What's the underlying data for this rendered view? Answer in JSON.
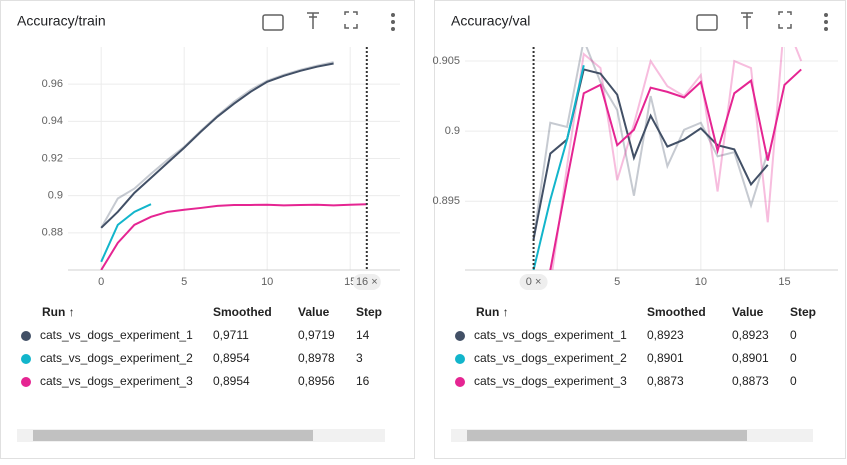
{
  "chart_data": [
    {
      "type": "line",
      "title": "Accuracy/train",
      "x": [
        0,
        1,
        2,
        3,
        4,
        5,
        6,
        7,
        8,
        9,
        10,
        11,
        12,
        13,
        14,
        15,
        16
      ],
      "xlim": [
        -2,
        18
      ],
      "xticks": [
        0,
        5,
        10,
        15
      ],
      "ylim": [
        0.86,
        0.98
      ],
      "yticks": [
        0.88,
        0.9,
        0.92,
        0.94,
        0.96
      ],
      "grid": true,
      "step_marker": {
        "value": 16,
        "label": "16 ×"
      },
      "series": [
        {
          "name": "cats_vs_dogs_experiment_1",
          "color": "#425066",
          "values": [
            0.8827,
            0.8913,
            0.9015,
            0.9096,
            0.9177,
            0.9258,
            0.9344,
            0.9425,
            0.9495,
            0.9559,
            0.9613,
            0.9645,
            0.9672,
            0.9694,
            0.9711,
            null,
            null
          ],
          "raw_values": [
            0.8827,
            0.8985,
            0.9038,
            0.9118,
            0.9193,
            0.9263,
            0.9349,
            0.943,
            0.9505,
            0.9569,
            0.9618,
            0.965,
            0.9677,
            0.9699,
            0.9719,
            null,
            null
          ]
        },
        {
          "name": "cats_vs_dogs_experiment_2",
          "color": "#12b5cb",
          "values": [
            0.8644,
            0.8843,
            0.8913,
            0.8954,
            null,
            null,
            null,
            null,
            null,
            null,
            null,
            null,
            null,
            null,
            null,
            null,
            null
          ]
        },
        {
          "name": "cats_vs_dogs_experiment_3",
          "color": "#e52592",
          "values": [
            0.86,
            0.8746,
            0.8843,
            0.8886,
            0.8913,
            0.8924,
            0.8934,
            0.8945,
            0.895,
            0.895,
            0.8951,
            0.8948,
            0.895,
            0.8951,
            0.8948,
            0.8951,
            0.8954
          ]
        }
      ]
    },
    {
      "type": "line",
      "title": "Accuracy/val",
      "x": [
        0,
        1,
        2,
        3,
        4,
        5,
        6,
        7,
        8,
        9,
        10,
        11,
        12,
        13,
        14,
        15,
        16
      ],
      "xlim": [
        -4.1,
        18.2
      ],
      "xticks": [
        5,
        10,
        15
      ],
      "ylim": [
        0.8901,
        0.906
      ],
      "yticks": [
        0.895,
        0.9,
        0.905
      ],
      "grid": true,
      "step_marker": {
        "value": 0,
        "label": "0 ×"
      },
      "series": [
        {
          "name": "cats_vs_dogs_experiment_1",
          "color": "#425066",
          "values": [
            0.8923,
            0.8984,
            0.8994,
            0.9044,
            0.9041,
            0.9026,
            0.8981,
            0.9011,
            0.8989,
            0.8994,
            0.9002,
            0.899,
            0.8987,
            0.8962,
            0.8976,
            null,
            null
          ],
          "raw_values": [
            0.8923,
            0.9006,
            0.9003,
            0.9065,
            0.9035,
            0.9015,
            0.8954,
            0.9025,
            0.8975,
            0.9001,
            0.9006,
            0.8982,
            0.8985,
            0.8947,
            0.8985,
            null,
            null
          ]
        },
        {
          "name": "cats_vs_dogs_experiment_2",
          "color": "#12b5cb",
          "values": [
            0.8901,
            0.8951,
            0.8994,
            0.9047,
            null,
            null,
            null,
            null,
            null,
            null,
            null,
            null,
            null,
            null,
            null,
            null,
            null
          ]
        },
        {
          "name": "cats_vs_dogs_experiment_3",
          "color": "#e52592",
          "values": [
            0.8873,
            0.8901,
            0.8965,
            0.9027,
            0.9033,
            0.899,
            0.9001,
            0.9031,
            0.9028,
            0.9024,
            0.9035,
            0.8986,
            0.9027,
            0.9036,
            0.8979,
            0.9033,
            0.9044
          ],
          "raw_values": [
            0.8873,
            0.889,
            0.8975,
            0.9055,
            0.9045,
            0.8965,
            0.9005,
            0.905,
            0.9032,
            0.9025,
            0.904,
            0.8957,
            0.905,
            0.9045,
            0.8935,
            0.908,
            0.905
          ]
        }
      ]
    }
  ],
  "cards": [
    {
      "table": {
        "header": [
          "Run ↑",
          "Smoothed",
          "Value",
          "Step"
        ],
        "rows": [
          [
            "0,9711",
            "0,9719",
            "14"
          ],
          [
            "0,8954",
            "0,8978",
            "3"
          ],
          [
            "0,8954",
            "0,8956",
            "16"
          ]
        ]
      }
    },
    {
      "table": {
        "header": [
          "Run ↑",
          "Smoothed",
          "Value",
          "Step"
        ],
        "rows": [
          [
            "0,8923",
            "0,8923",
            "0"
          ],
          [
            "0,8901",
            "0,8901",
            "0"
          ],
          [
            "0,8873",
            "0,8873",
            "0"
          ]
        ]
      }
    }
  ]
}
